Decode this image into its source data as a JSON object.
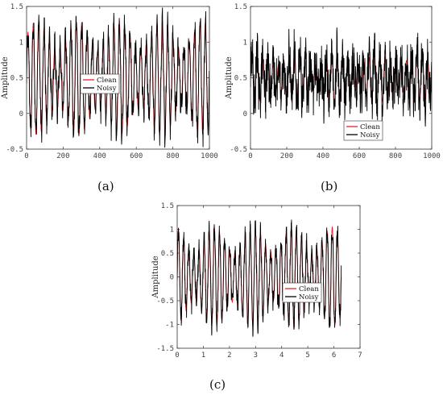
{
  "captions": [
    "(a)",
    "(b)",
    "(c)"
  ],
  "chart_data": [
    {
      "type": "line",
      "ylabel": "Amplitude",
      "xlim": [
        0,
        1000
      ],
      "ylim": [
        -0.5,
        1.5
      ],
      "xticks": [
        "0",
        "200",
        "400",
        "600",
        "800",
        "1000"
      ],
      "yticks": [
        "-0.5",
        "0",
        "0.5",
        "1",
        "1.5"
      ],
      "legend_location": "center-left",
      "series": [
        {
          "name": "Clean",
          "color": "#e8202a",
          "baseline": 0.5,
          "amplitude": 0.8,
          "cycles": 34,
          "noise": 0.15
        },
        {
          "name": "Noisy",
          "color": "#000000",
          "baseline": 0.5,
          "amplitude": 0.8,
          "cycles": 34,
          "noise": 0.15
        }
      ]
    },
    {
      "type": "line",
      "ylabel": "Amplitude",
      "xlim": [
        0,
        1000
      ],
      "ylim": [
        -0.5,
        1.5
      ],
      "xticks": [
        "0",
        "200",
        "400",
        "600",
        "800",
        "1000"
      ],
      "yticks": [
        "-0.5",
        "0",
        "0.5",
        "1",
        "1.5"
      ],
      "legend_location": "bottom-right",
      "series": [
        {
          "name": "Clean",
          "color": "#e8202a",
          "baseline": 0.5,
          "amplitude": 0.35,
          "cycles": 34,
          "noise": 0.3
        },
        {
          "name": "Noisy",
          "color": "#000000",
          "baseline": 0.5,
          "amplitude": 0.35,
          "cycles": 34,
          "noise": 0.3
        }
      ]
    },
    {
      "type": "line",
      "ylabel": "Amplitude",
      "xlim": [
        0,
        7
      ],
      "ylim": [
        -1.5,
        1.5
      ],
      "data_xmax": 6.28,
      "xticks": [
        "0",
        "1",
        "2",
        "3",
        "4",
        "5",
        "6",
        "7"
      ],
      "yticks": [
        "-1.5",
        "-1",
        "-0.5",
        "0",
        "0.5",
        "1",
        "1.5"
      ],
      "legend_location": "center-right",
      "series": [
        {
          "name": "Clean",
          "color": "#e8202a",
          "baseline": 0.0,
          "amplitude": 1.05,
          "cycles": 32,
          "noise": 0.18
        },
        {
          "name": "Noisy",
          "color": "#000000",
          "baseline": 0.0,
          "amplitude": 1.05,
          "cycles": 32,
          "noise": 0.18
        }
      ]
    }
  ]
}
